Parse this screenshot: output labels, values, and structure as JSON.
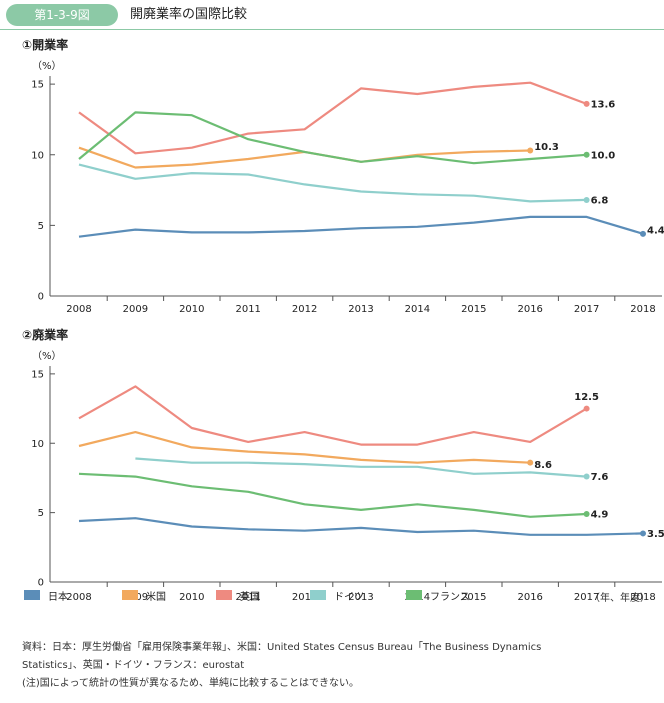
{
  "figure": {
    "badge": "第1-3-9図",
    "title": "開廃業率の国際比較"
  },
  "legend": [
    {
      "name": "日本",
      "color": "#5b8db8"
    },
    {
      "name": "米国",
      "color": "#f2a95e"
    },
    {
      "name": "英国",
      "color": "#ee8a80"
    },
    {
      "name": "ドイツ",
      "color": "#8fcfcc"
    },
    {
      "name": "フランス",
      "color": "#6cbd73"
    }
  ],
  "unit_note": "（年、年度）",
  "notes": {
    "source_line1": "資料：日本：厚生労働省「雇用保険事業年報」、米国：United States Census Bureau「The Business Dynamics",
    "source_line2": "Statistics」、英国・ドイツ・フランス：eurostat",
    "caveat": "(注)国によって統計の性質が異なるため、単純に比較することはできない。"
  },
  "chart_data": [
    {
      "type": "line",
      "title": "①開業率",
      "ylabel": "（%）",
      "ylim": [
        0,
        16
      ],
      "yticks": [
        "0",
        "5",
        "10",
        "15"
      ],
      "categories": [
        "2008",
        "2009",
        "2010",
        "2011",
        "2012",
        "2013",
        "2014",
        "2015",
        "2016",
        "2017",
        "2018"
      ],
      "series": [
        {
          "name": "日本",
          "color": "#5b8db8",
          "values": [
            4.2,
            4.7,
            4.5,
            4.5,
            4.6,
            4.8,
            4.9,
            5.2,
            5.6,
            5.6,
            4.4
          ],
          "end_label": "4.4"
        },
        {
          "name": "米国",
          "color": "#f2a95e",
          "values": [
            10.5,
            9.1,
            9.3,
            9.7,
            10.2,
            9.5,
            10.0,
            10.2,
            10.3,
            null,
            null
          ],
          "end_label": "10.3"
        },
        {
          "name": "英国",
          "color": "#ee8a80",
          "values": [
            13.0,
            10.1,
            10.5,
            11.5,
            11.8,
            14.7,
            14.3,
            14.8,
            15.1,
            13.6,
            null
          ],
          "end_label": "13.6"
        },
        {
          "name": "ドイツ",
          "color": "#8fcfcc",
          "values": [
            9.3,
            8.3,
            8.7,
            8.6,
            7.9,
            7.4,
            7.2,
            7.1,
            6.7,
            6.8,
            null
          ],
          "end_label": "6.8"
        },
        {
          "name": "フランス",
          "color": "#6cbd73",
          "values": [
            9.7,
            13.0,
            12.8,
            11.1,
            10.2,
            9.5,
            9.9,
            9.4,
            9.7,
            10.0,
            null
          ],
          "end_label": "10.0"
        }
      ]
    },
    {
      "type": "line",
      "title": "②廃業率",
      "ylabel": "（%）",
      "ylim": [
        0,
        16
      ],
      "yticks": [
        "0",
        "5",
        "10",
        "15"
      ],
      "categories": [
        "2008",
        "2009",
        "2010",
        "2011",
        "2012",
        "2013",
        "2014",
        "2015",
        "2016",
        "2017",
        "2018"
      ],
      "series": [
        {
          "name": "日本",
          "color": "#5b8db8",
          "values": [
            4.4,
            4.6,
            4.0,
            3.8,
            3.7,
            3.9,
            3.6,
            3.7,
            3.4,
            3.4,
            3.5
          ],
          "end_label": "3.5"
        },
        {
          "name": "米国",
          "color": "#f2a95e",
          "values": [
            9.8,
            10.8,
            9.7,
            9.4,
            9.2,
            8.8,
            8.6,
            8.8,
            8.6,
            null,
            null
          ],
          "end_label": "8.6"
        },
        {
          "name": "英国",
          "color": "#ee8a80",
          "values": [
            11.8,
            14.1,
            11.1,
            10.1,
            10.8,
            9.9,
            9.9,
            10.8,
            10.1,
            12.5,
            null
          ],
          "end_label": "12.5"
        },
        {
          "name": "ドイツ",
          "color": "#8fcfcc",
          "values": [
            null,
            8.9,
            8.6,
            8.6,
            8.5,
            8.3,
            8.3,
            7.8,
            7.9,
            7.6,
            null
          ],
          "end_label": "7.6"
        },
        {
          "name": "フランス",
          "color": "#6cbd73",
          "values": [
            7.8,
            7.6,
            6.9,
            6.5,
            5.6,
            5.2,
            5.6,
            5.2,
            4.7,
            4.9,
            null
          ],
          "end_label": "4.9"
        }
      ]
    }
  ]
}
